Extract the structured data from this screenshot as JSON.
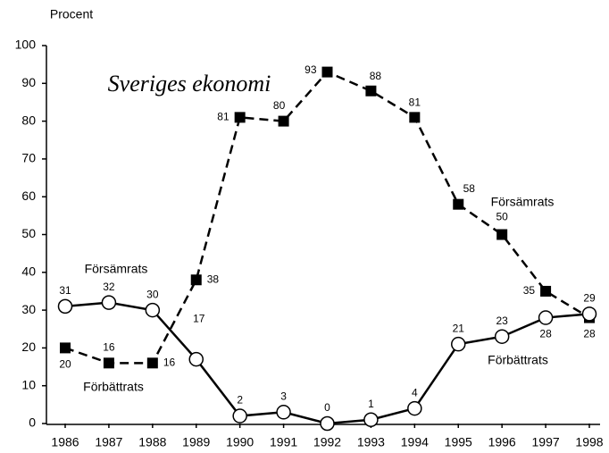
{
  "chart_data": {
    "type": "line",
    "title": "Sveriges ekonomi",
    "y_label": "Procent",
    "categories": [
      "1986",
      "1987",
      "1988",
      "1989",
      "1990",
      "1991",
      "1992",
      "1993",
      "1994",
      "1995",
      "1996",
      "1997",
      "1998"
    ],
    "series": [
      {
        "name": "Försämrats",
        "color": "#000000",
        "dashed": true,
        "marker": "square",
        "values": [
          20,
          16,
          16,
          38,
          81,
          80,
          93,
          88,
          81,
          58,
          50,
          35,
          28
        ]
      },
      {
        "name": "Förbättrats",
        "color": "#000000",
        "dashed": false,
        "marker": "circle",
        "values": [
          31,
          32,
          30,
          17,
          2,
          3,
          0,
          1,
          4,
          21,
          23,
          28,
          29
        ]
      }
    ],
    "annotations": [
      "Försämrats",
      "Förbättrats"
    ],
    "ylim": [
      0,
      100
    ],
    "yticks": [
      0,
      10,
      20,
      30,
      40,
      50,
      60,
      70,
      80,
      90,
      100
    ],
    "grid": false
  }
}
